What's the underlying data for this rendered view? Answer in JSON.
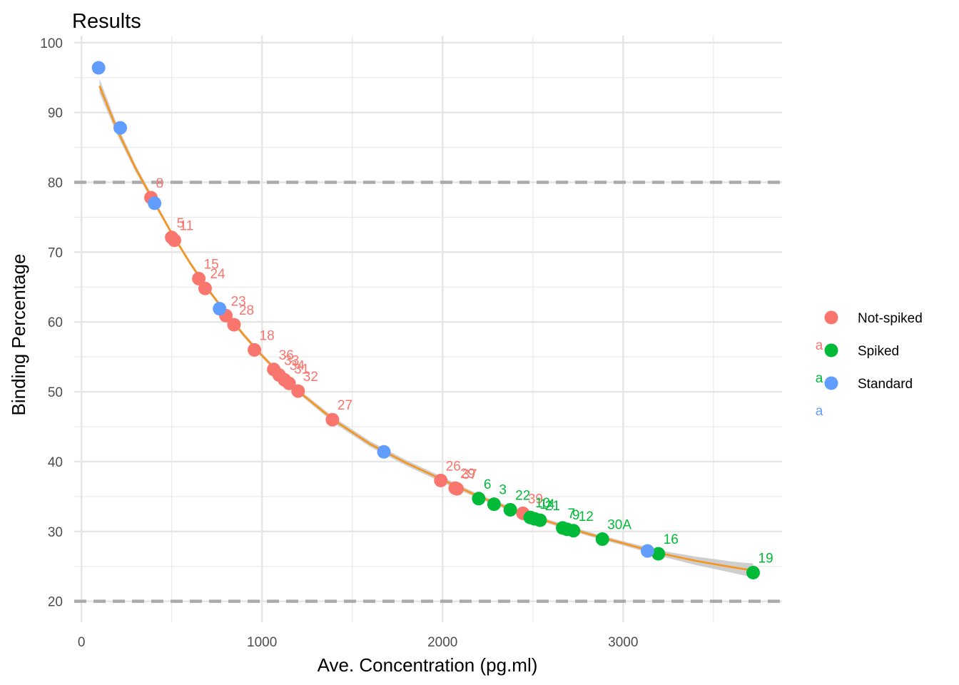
{
  "chart_data": {
    "type": "scatter",
    "title": "Results",
    "xlabel": "Ave. Concentration (pg.ml)",
    "ylabel": "Binding Percentage",
    "xlim": [
      -40,
      3880
    ],
    "ylim": [
      17,
      101
    ],
    "x_ticks": [
      0,
      1000,
      2000,
      3000
    ],
    "y_ticks": [
      20,
      30,
      40,
      50,
      60,
      70,
      80,
      90,
      100
    ],
    "grid": true,
    "legend_position": "right",
    "reference_lines": [
      {
        "axis": "y",
        "value": 80,
        "style": "dashed",
        "color": "#aaaaaa"
      },
      {
        "axis": "y",
        "value": 20,
        "style": "dashed",
        "color": "#aaaaaa"
      }
    ],
    "legend_key_glyph": "a",
    "series": [
      {
        "name": "Not-spiked",
        "color": "#F8766D",
        "points": [
          {
            "x": 385,
            "y": 77.8,
            "label": "8"
          },
          {
            "x": 500,
            "y": 72.1,
            "label": "5"
          },
          {
            "x": 515,
            "y": 71.7,
            "label": "11"
          },
          {
            "x": 650,
            "y": 66.2,
            "label": "15"
          },
          {
            "x": 685,
            "y": 64.8,
            "label": "24"
          },
          {
            "x": 800,
            "y": 60.9,
            "label": "23"
          },
          {
            "x": 845,
            "y": 59.6,
            "label": "28"
          },
          {
            "x": 958,
            "y": 56.0,
            "label": "18"
          },
          {
            "x": 1065,
            "y": 53.2,
            "label": "36"
          },
          {
            "x": 1095,
            "y": 52.4,
            "label": "33"
          },
          {
            "x": 1125,
            "y": 51.7,
            "label": "34"
          },
          {
            "x": 1150,
            "y": 51.2,
            "label": "31"
          },
          {
            "x": 1200,
            "y": 50.1,
            "label": "32"
          },
          {
            "x": 1390,
            "y": 46.0,
            "label": "27"
          },
          {
            "x": 1990,
            "y": 37.3,
            "label": "26"
          },
          {
            "x": 2070,
            "y": 36.2,
            "label": "29"
          },
          {
            "x": 2080,
            "y": 36.1,
            "label": "37"
          },
          {
            "x": 2445,
            "y": 32.6,
            "label": "39"
          }
        ]
      },
      {
        "name": "Spiked",
        "color": "#00BA38",
        "points": [
          {
            "x": 2200,
            "y": 34.7,
            "label": "6"
          },
          {
            "x": 2285,
            "y": 33.9,
            "label": "3"
          },
          {
            "x": 2375,
            "y": 33.1,
            "label": "22"
          },
          {
            "x": 2485,
            "y": 32.0,
            "label": "10"
          },
          {
            "x": 2510,
            "y": 31.8,
            "label": "14"
          },
          {
            "x": 2540,
            "y": 31.6,
            "label": "21"
          },
          {
            "x": 2665,
            "y": 30.5,
            "label": "7"
          },
          {
            "x": 2690,
            "y": 30.3,
            "label": "9"
          },
          {
            "x": 2725,
            "y": 30.1,
            "label": "12"
          },
          {
            "x": 2885,
            "y": 28.9,
            "label": "30A"
          },
          {
            "x": 3195,
            "y": 26.8,
            "label": "16"
          },
          {
            "x": 3720,
            "y": 24.1,
            "label": "19"
          }
        ]
      },
      {
        "name": "Standard",
        "color": "#619CFF",
        "points": [
          {
            "x": 95,
            "y": 96.4
          },
          {
            "x": 215,
            "y": 87.8
          },
          {
            "x": 405,
            "y": 77.0
          },
          {
            "x": 765,
            "y": 61.9
          },
          {
            "x": 1675,
            "y": 41.4
          },
          {
            "x": 3135,
            "y": 27.2
          }
        ]
      }
    ],
    "fit": {
      "color": "#F7941D",
      "band_color": "#bdbdbd",
      "points": [
        {
          "x": 100,
          "y": 93.8
        },
        {
          "x": 200,
          "y": 87.4
        },
        {
          "x": 300,
          "y": 82.0
        },
        {
          "x": 400,
          "y": 77.3
        },
        {
          "x": 500,
          "y": 72.7
        },
        {
          "x": 600,
          "y": 68.5
        },
        {
          "x": 700,
          "y": 64.7
        },
        {
          "x": 800,
          "y": 61.3
        },
        {
          "x": 900,
          "y": 58.1
        },
        {
          "x": 1000,
          "y": 55.2
        },
        {
          "x": 1100,
          "y": 52.5
        },
        {
          "x": 1200,
          "y": 50.1
        },
        {
          "x": 1400,
          "y": 45.9
        },
        {
          "x": 1600,
          "y": 42.5
        },
        {
          "x": 1800,
          "y": 39.8
        },
        {
          "x": 2000,
          "y": 37.4
        },
        {
          "x": 2200,
          "y": 35.0
        },
        {
          "x": 2400,
          "y": 33.0
        },
        {
          "x": 2600,
          "y": 31.3
        },
        {
          "x": 2800,
          "y": 29.7
        },
        {
          "x": 3000,
          "y": 28.3
        },
        {
          "x": 3200,
          "y": 26.9
        },
        {
          "x": 3400,
          "y": 25.8
        },
        {
          "x": 3600,
          "y": 24.9
        },
        {
          "x": 3720,
          "y": 24.4
        }
      ],
      "band_halfwidth": [
        1.0,
        0.7,
        0.5,
        0.4,
        0.3,
        0.3,
        0.3,
        0.3,
        0.3,
        0.3,
        0.3,
        0.3,
        0.4,
        0.4,
        0.4,
        0.4,
        0.3,
        0.3,
        0.3,
        0.3,
        0.3,
        0.4,
        0.6,
        0.8,
        1.0
      ]
    }
  }
}
